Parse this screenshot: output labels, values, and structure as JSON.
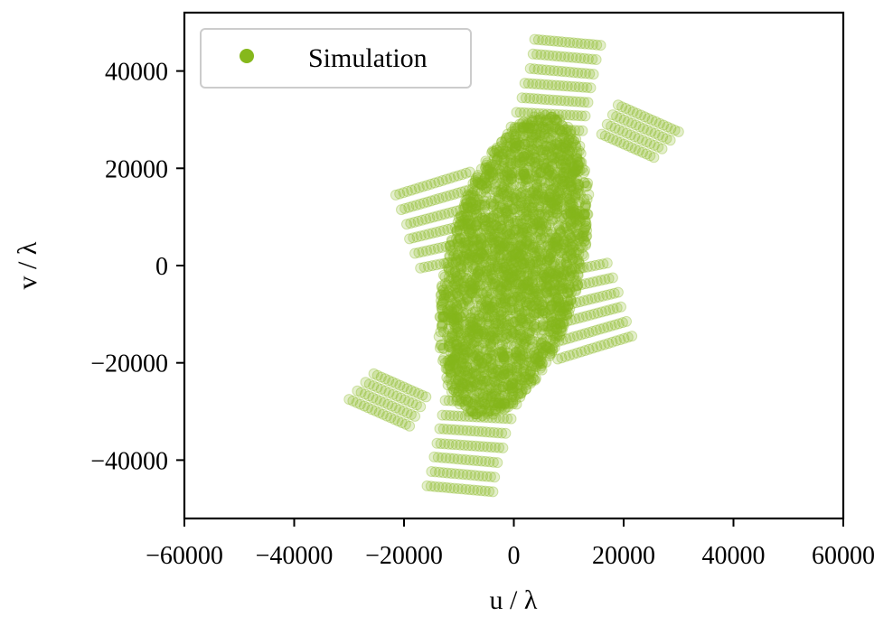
{
  "chart_data": {
    "type": "scatter",
    "title": "",
    "xlabel": "u / λ",
    "ylabel": "v / λ",
    "xlim": [
      -60000,
      60000
    ],
    "ylim": [
      -52000,
      52000
    ],
    "xticks": [
      -60000,
      -40000,
      -20000,
      0,
      20000,
      40000,
      60000
    ],
    "xtick_labels": [
      "−60000",
      "−40000",
      "−20000",
      "0",
      "20000",
      "40000",
      "60000"
    ],
    "yticks": [
      -40000,
      -20000,
      0,
      20000,
      40000
    ],
    "ytick_labels": [
      "−40000",
      "−20000",
      "0",
      "20000",
      "40000"
    ],
    "grid": false,
    "legend": {
      "position": "upper-left",
      "entries": [
        "Simulation"
      ]
    },
    "series": [
      {
        "name": "Simulation",
        "color": "#86b81c",
        "marker": "circle-translucent",
        "description_of_shape": "uv-coverage tracks symmetric about origin",
        "tracks": [
          {
            "x_start": 3800,
            "x_end": 15800,
            "v": 46500,
            "slope": -0.1
          },
          {
            "x_start": 3500,
            "x_end": 15000,
            "v": 43500,
            "slope": -0.1
          },
          {
            "x_start": 3000,
            "x_end": 14500,
            "v": 40500,
            "slope": -0.1
          },
          {
            "x_start": 2000,
            "x_end": 14000,
            "v": 37500,
            "slope": -0.08
          },
          {
            "x_start": 1500,
            "x_end": 13500,
            "v": 34500,
            "slope": -0.08
          },
          {
            "x_start": 500,
            "x_end": 13000,
            "v": 31500,
            "slope": -0.06
          },
          {
            "x_start": -500,
            "x_end": 12500,
            "v": 28500,
            "slope": -0.06
          },
          {
            "x_start": 19000,
            "x_end": 30000,
            "v": 33000,
            "slope": -0.5
          },
          {
            "x_start": 18000,
            "x_end": 28500,
            "v": 31000,
            "slope": -0.5
          },
          {
            "x_start": 17000,
            "x_end": 27000,
            "v": 29000,
            "slope": -0.5
          },
          {
            "x_start": 16000,
            "x_end": 25500,
            "v": 27000,
            "slope": -0.5
          },
          {
            "x_start": -21500,
            "x_end": -8000,
            "v": 14500,
            "slope": 0.35
          },
          {
            "x_start": -20500,
            "x_end": -7500,
            "v": 11500,
            "slope": 0.33
          },
          {
            "x_start": -19500,
            "x_end": -7000,
            "v": 8500,
            "slope": 0.3
          },
          {
            "x_start": -19000,
            "x_end": -6500,
            "v": 5500,
            "slope": 0.28
          },
          {
            "x_start": -18000,
            "x_end": -6000,
            "v": 2500,
            "slope": 0.25
          },
          {
            "x_start": -17000,
            "x_end": -5500,
            "v": -500,
            "slope": 0.22
          }
        ],
        "symmetry": "point-symmetric through origin (u,v) -> (-u,-v)"
      }
    ]
  }
}
